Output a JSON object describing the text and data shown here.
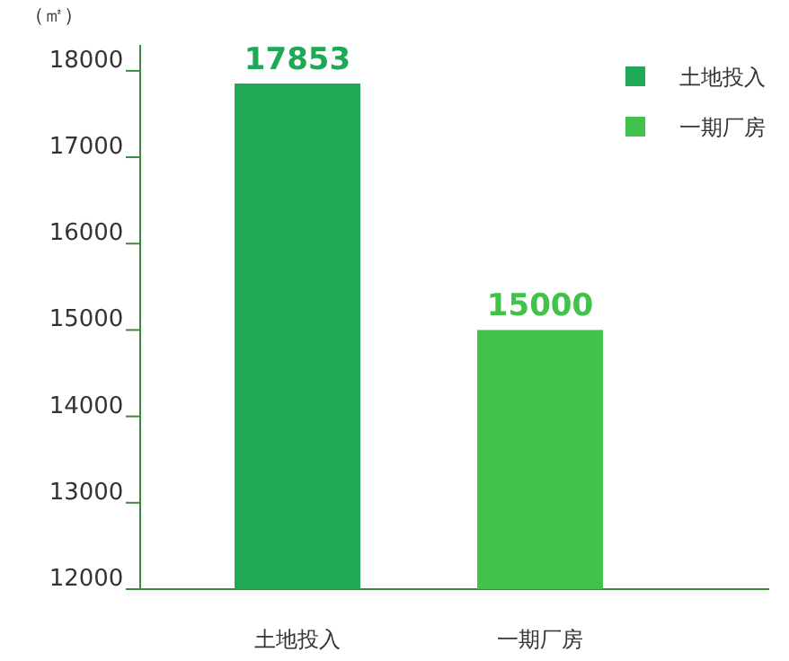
{
  "chart_data": {
    "type": "bar",
    "ylabel": "（㎡）",
    "categories": [
      "土地投入",
      "一期厂房"
    ],
    "series": [
      {
        "name": "土地投入",
        "color": "#1fa856",
        "values": [
          17853,
          null
        ]
      },
      {
        "name": "一期厂房",
        "color": "#40c24b",
        "values": [
          null,
          15000
        ]
      }
    ],
    "ylim": [
      12000,
      18300
    ],
    "yticks": [
      12000,
      13000,
      14000,
      15000,
      16000,
      17000,
      18000
    ],
    "data_labels": true,
    "legend": "top right",
    "grid": false
  }
}
